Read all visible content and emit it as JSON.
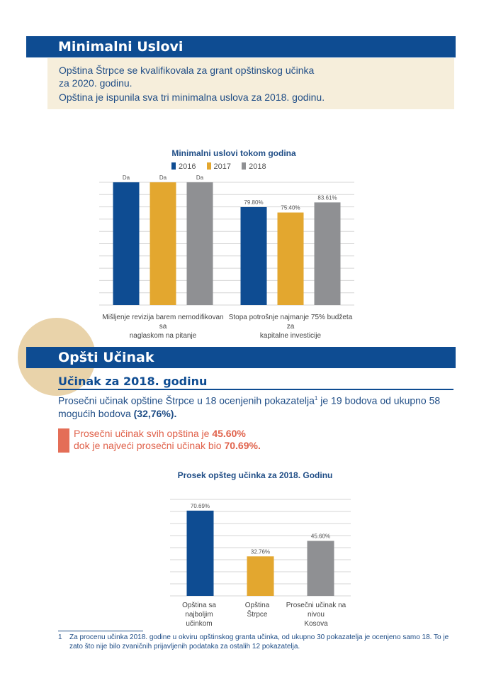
{
  "section1": {
    "title": "Minimalni Uslovi",
    "line1": "Opština Štrpce  se kvalifikovala za grant opštinskog učinka",
    "line2": "za 2020. godinu.",
    "line3": "Opština je ispunila sva tri minimalna uslova za 2018. godinu."
  },
  "section2": {
    "title": "Opšti Učinak",
    "subtitle": "Učinak za 2018. godinu",
    "summary_part1": "Prosečni učinak opštine Štrpce u 18 ocenjenih pokazatelja",
    "summary_sup": "1",
    "summary_part2": " je 19 bodova od ukupno 58 mogućih bodova ",
    "summary_bold": "(32,76%).",
    "highlight_part1": "Prosečni učinak svih opština je ",
    "highlight_bold1": "45.60%",
    "highlight_part2": "dok je najveći prosečni učinak bio ",
    "highlight_bold2": "70.69%."
  },
  "footnote": {
    "number": "1",
    "text": "Za procenu učinka 2018. godine u okviru opštinskog granta učinka, od ukupno 30 pokazatelja je ocenjeno samo 18. To je zato što nije bilo zvaničnih prijavljenih podataka za ostalih 12 pokazatelja."
  },
  "colors": {
    "navy": "#0e4c92",
    "gold": "#e3a72f",
    "gray": "#8f9093",
    "accent_red": "#e0624b",
    "box_bg": "#f6eedb"
  },
  "chart_data": [
    {
      "type": "bar",
      "title": "Minimalni uslovi tokom godina",
      "categories": [
        "Mišljenje revizija barem nemodifikovan sa naglaskom na pitanje",
        "Stopa potrošnje najmanje 75% budžeta za kapitalne investicije"
      ],
      "category_lines": [
        [
          "Mišljenje revizija barem nemodifikovan sa",
          "naglaskom na pitanje"
        ],
        [
          "Stopa potrošnje najmanje 75% budžeta za",
          "kapitalne investicije"
        ]
      ],
      "series": [
        {
          "name": "2016",
          "values": [
            100,
            79.8
          ],
          "labels": [
            "Da",
            "79.80%"
          ]
        },
        {
          "name": "2017",
          "values": [
            100,
            75.4
          ],
          "labels": [
            "Da",
            "75.40%"
          ]
        },
        {
          "name": "2018",
          "values": [
            100,
            83.61
          ],
          "labels": [
            "Da",
            "83.61%"
          ]
        }
      ],
      "ylim": [
        0,
        100
      ],
      "grid": true,
      "legend": "top"
    },
    {
      "type": "bar",
      "title": "Prosek opšteg učinka za 2018. Godinu",
      "categories": [
        "Opština sa najboljim učinkom",
        "Opština Štrpce",
        "Prosečni učinak na nivou Kosova"
      ],
      "category_lines": [
        [
          "Opština sa najboljim",
          "učinkom"
        ],
        [
          "Opština",
          "Štrpce"
        ],
        [
          "Prosečni učinak na nivou",
          "Kosova"
        ]
      ],
      "values": [
        70.69,
        32.76,
        45.6
      ],
      "labels": [
        "70.69%",
        "32.76%",
        "45.60%"
      ],
      "ylim": [
        0,
        80
      ],
      "grid": true
    }
  ]
}
